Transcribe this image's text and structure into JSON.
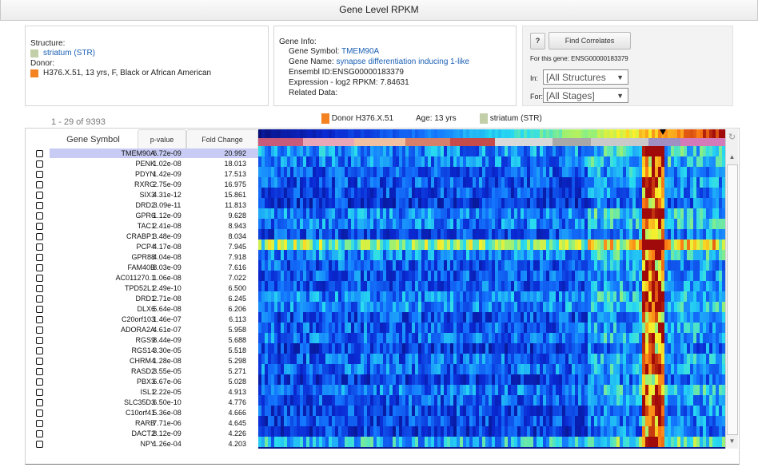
{
  "title": "Gene Level RPKM",
  "structure": {
    "label": "Structure:",
    "value": "striatum (STR)",
    "color": "#c2cfa8"
  },
  "donor": {
    "label": "Donor:",
    "value": "H376.X.51, 13 yrs, F, Black or African American",
    "color": "#f58220"
  },
  "gene_info": {
    "heading": "Gene Info:",
    "symbol_label": "Gene Symbol:",
    "symbol": "TMEM90A",
    "name_label": "Gene Name:",
    "name": "synapse differentiation inducing 1-like",
    "ensembl": "Ensembl ID:ENSG00000183379",
    "expression": "Expression - log2 RPKM: 7.84631",
    "related": "Related Data:"
  },
  "correlates": {
    "help": "?",
    "button": "Find Correlates",
    "for_gene": "For this gene: ENSG00000183379",
    "in_label": "In:",
    "in_value": "[All Structures",
    "for_label": "For:",
    "for_value": "[All Stages]"
  },
  "paging": "1 - 29 of 9393",
  "legend": {
    "donor": "Donor H376.X.51",
    "age": "Age: 13 yrs",
    "structure": "striatum (STR)"
  },
  "columns": {
    "gene": "Gene Symbol",
    "pvalue": "p-value",
    "fold": "Fold Change"
  },
  "rows": [
    {
      "gene": "TMEM90A",
      "p": "6.72e-09",
      "fc": "20.992"
    },
    {
      "gene": "PENK",
      "p": "1.02e-08",
      "fc": "18.013"
    },
    {
      "gene": "PDYN",
      "p": "1.42e-09",
      "fc": "17.513"
    },
    {
      "gene": "RXRG",
      "p": "2.75e-09",
      "fc": "16.975"
    },
    {
      "gene": "SIX3",
      "p": "4.31e-12",
      "fc": "15.861"
    },
    {
      "gene": "DRD2",
      "p": "3.09e-11",
      "fc": "11.813"
    },
    {
      "gene": "GPR6",
      "p": "1.12e-09",
      "fc": "9.628"
    },
    {
      "gene": "TAC1",
      "p": "2.41e-08",
      "fc": "8.943"
    },
    {
      "gene": "CRABP1",
      "p": "3.48e-09",
      "fc": "8.034"
    },
    {
      "gene": "PCP4",
      "p": "4.17e-08",
      "fc": "7.945"
    },
    {
      "gene": "GPR88",
      "p": "4.04e-08",
      "fc": "7.918"
    },
    {
      "gene": "FAM40B",
      "p": "8.03e-09",
      "fc": "7.616"
    },
    {
      "gene": "AC011270.1",
      "p": "1.06e-08",
      "fc": "7.022"
    },
    {
      "gene": "TPD52L1",
      "p": "2.49e-10",
      "fc": "6.500"
    },
    {
      "gene": "DRD1",
      "p": "2.71e-08",
      "fc": "6.245"
    },
    {
      "gene": "DLX6",
      "p": "5.64e-08",
      "fc": "6.206"
    },
    {
      "gene": "C20orf103",
      "p": "1.46e-07",
      "fc": "6.113"
    },
    {
      "gene": "ADORA2A",
      "p": "4.61e-07",
      "fc": "5.958"
    },
    {
      "gene": "RGS9",
      "p": "8.44e-09",
      "fc": "5.688"
    },
    {
      "gene": "RGS14",
      "p": "3.30e-05",
      "fc": "5.518"
    },
    {
      "gene": "CHRM4",
      "p": "1.28e-08",
      "fc": "5.298"
    },
    {
      "gene": "RASD2",
      "p": "3.55e-05",
      "fc": "5.271"
    },
    {
      "gene": "PBX3",
      "p": "6.67e-06",
      "fc": "5.028"
    },
    {
      "gene": "ISL1",
      "p": "2.22e-05",
      "fc": "4.913"
    },
    {
      "gene": "SLC35D3",
      "p": "6.50e-10",
      "fc": "4.776"
    },
    {
      "gene": "C10orf41",
      "p": "5.36e-08",
      "fc": "4.666"
    },
    {
      "gene": "RARB",
      "p": "7.71e-06",
      "fc": "4.645"
    },
    {
      "gene": "DACT2",
      "p": "8.12e-09",
      "fc": "4.226"
    },
    {
      "gene": "NPY",
      "p": "1.26e-04",
      "fc": "4.203"
    }
  ],
  "stage_colors": [
    "#c85a7a",
    "#e9a6b6",
    "#f0c0a0",
    "#d67f6a",
    "#c64b4b",
    "#d9d9d9",
    "#a8a8a8",
    "#c9c9c9",
    "#9f8fc2",
    "#d47ab8"
  ],
  "icons": {
    "refresh": "refresh-icon",
    "scroll_up": "scroll-up-icon",
    "scroll_down": "scroll-down-icon",
    "checkbox": "checkbox-icon"
  }
}
